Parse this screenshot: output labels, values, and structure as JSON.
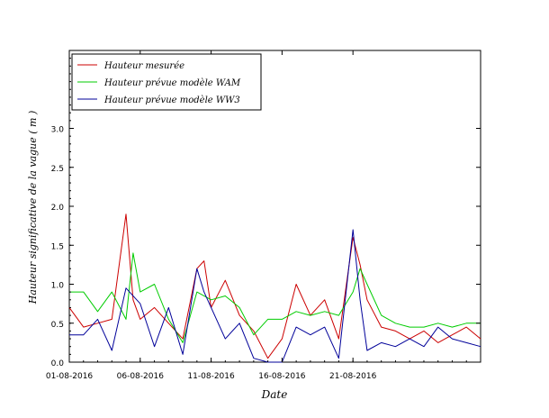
{
  "chart_data": {
    "type": "line",
    "title": "",
    "xlabel": "Date",
    "ylabel": "Hauteur significative de la vague ( m )",
    "xlim": [
      "2016-08-01",
      "2016-08-30"
    ],
    "ylim": [
      0,
      4
    ],
    "x_ticks": [
      "01-08-2016",
      "06-08-2016",
      "11-08-2016",
      "16-08-2016",
      "21-08-2016"
    ],
    "y_ticks": [
      "0.0",
      "0.5",
      "1.0",
      "1.5",
      "2.0",
      "2.5",
      "3.0"
    ],
    "grid": false,
    "legend_position": "top-left",
    "series": [
      {
        "name": "Hauteur mesurée",
        "color": "#cc0000",
        "x": [
          "2016-08-01",
          "2016-08-02",
          "2016-08-03",
          "2016-08-04",
          "2016-08-05",
          "2016-08-05T12:00",
          "2016-08-06",
          "2016-08-07",
          "2016-08-08",
          "2016-08-09",
          "2016-08-10",
          "2016-08-10T12:00",
          "2016-08-11",
          "2016-08-12",
          "2016-08-13",
          "2016-08-14",
          "2016-08-15",
          "2016-08-16",
          "2016-08-17",
          "2016-08-18",
          "2016-08-19",
          "2016-08-20",
          "2016-08-21",
          "2016-08-21T12:00",
          "2016-08-22",
          "2016-08-23",
          "2016-08-24",
          "2016-08-25",
          "2016-08-26",
          "2016-08-27",
          "2016-08-28",
          "2016-08-29",
          "2016-08-30"
        ],
        "y": [
          0.7,
          0.45,
          0.5,
          0.55,
          1.9,
          0.8,
          0.55,
          0.7,
          0.5,
          0.3,
          1.2,
          1.3,
          0.7,
          1.05,
          0.6,
          0.4,
          0.05,
          0.3,
          1.0,
          0.6,
          0.8,
          0.3,
          1.6,
          1.25,
          0.8,
          0.45,
          0.4,
          0.3,
          0.4,
          0.25,
          0.35,
          0.45,
          0.3
        ]
      },
      {
        "name": "Hauteur prévue modèle WAM",
        "color": "#00cc00",
        "x": [
          "2016-08-01",
          "2016-08-02",
          "2016-08-03",
          "2016-08-04",
          "2016-08-05",
          "2016-08-05T12:00",
          "2016-08-06",
          "2016-08-07",
          "2016-08-08",
          "2016-08-09",
          "2016-08-10",
          "2016-08-11",
          "2016-08-12",
          "2016-08-13",
          "2016-08-14",
          "2016-08-15",
          "2016-08-16",
          "2016-08-17",
          "2016-08-18",
          "2016-08-19",
          "2016-08-20",
          "2016-08-21",
          "2016-08-21T12:00",
          "2016-08-22",
          "2016-08-23",
          "2016-08-24",
          "2016-08-25",
          "2016-08-26",
          "2016-08-27",
          "2016-08-28",
          "2016-08-29",
          "2016-08-30"
        ],
        "y": [
          0.9,
          0.9,
          0.65,
          0.9,
          0.55,
          1.4,
          0.9,
          1.0,
          0.55,
          0.25,
          0.9,
          0.8,
          0.85,
          0.7,
          0.35,
          0.55,
          0.55,
          0.65,
          0.6,
          0.65,
          0.6,
          0.9,
          1.2,
          1.0,
          0.6,
          0.5,
          0.45,
          0.45,
          0.5,
          0.45,
          0.5,
          0.5
        ]
      },
      {
        "name": "Hauteur prévue modèle WW3",
        "color": "#000099",
        "x": [
          "2016-08-01",
          "2016-08-02",
          "2016-08-03",
          "2016-08-04",
          "2016-08-05",
          "2016-08-06",
          "2016-08-07",
          "2016-08-08",
          "2016-08-09",
          "2016-08-10",
          "2016-08-10T12:00",
          "2016-08-11",
          "2016-08-12",
          "2016-08-13",
          "2016-08-14",
          "2016-08-15",
          "2016-08-16",
          "2016-08-17",
          "2016-08-18",
          "2016-08-19",
          "2016-08-20",
          "2016-08-21",
          "2016-08-21T12:00",
          "2016-08-22",
          "2016-08-23",
          "2016-08-24",
          "2016-08-25",
          "2016-08-26",
          "2016-08-27",
          "2016-08-28",
          "2016-08-29",
          "2016-08-30"
        ],
        "y": [
          0.35,
          0.35,
          0.55,
          0.15,
          0.95,
          0.75,
          0.2,
          0.7,
          0.1,
          1.2,
          0.9,
          0.7,
          0.3,
          0.5,
          0.05,
          0.0,
          0.0,
          0.45,
          0.35,
          0.45,
          0.05,
          1.7,
          0.8,
          0.15,
          0.25,
          0.2,
          0.3,
          0.2,
          0.45,
          0.3,
          0.25,
          0.2
        ]
      }
    ]
  }
}
